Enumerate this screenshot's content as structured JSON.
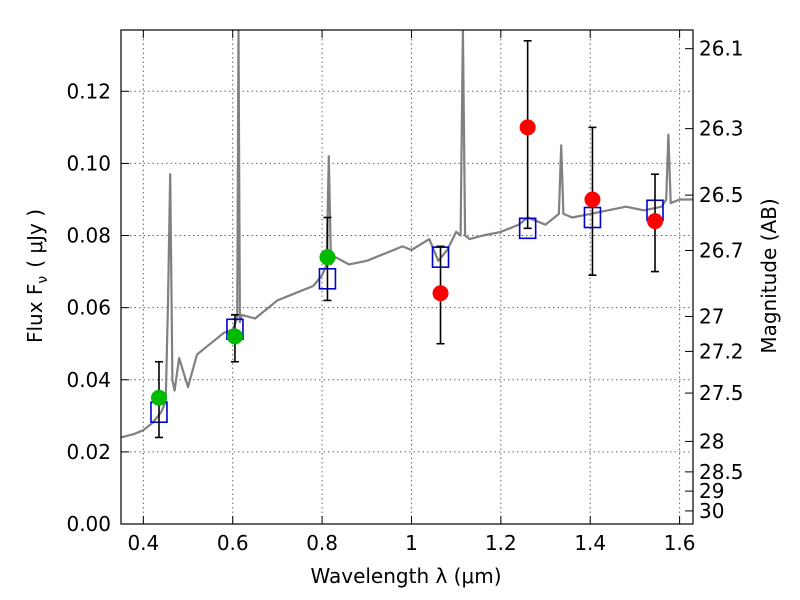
{
  "chart_data": {
    "type": "scatter",
    "xlabel": "Wavelength  λ (μm)",
    "ylabel_left": "Flux  F",
    "ylabel_left_sub": "ν",
    "ylabel_left_unit": "( μJy )",
    "ylabel_right": "Magnitude (AB)",
    "xlim": [
      0.35,
      1.63
    ],
    "ylim": [
      0.0,
      0.137
    ],
    "grid": true,
    "x_ticks": [
      0.4,
      0.6,
      0.8,
      1.0,
      1.2,
      1.4,
      1.6
    ],
    "x_tick_labels": [
      "0.4",
      "0.6",
      "0.8",
      "1",
      "1.2",
      "1.4",
      "1.6"
    ],
    "y_ticks": [
      0.0,
      0.02,
      0.04,
      0.06,
      0.08,
      0.1,
      0.12
    ],
    "y_tick_labels": [
      "0.00",
      "0.02",
      "0.04",
      "0.06",
      "0.08",
      "0.10",
      "0.12"
    ],
    "right_ticks": [
      {
        "label": "26.1",
        "mag": 26.1
      },
      {
        "label": "26.3",
        "mag": 26.3
      },
      {
        "label": "26.5",
        "mag": 26.5
      },
      {
        "label": "26.7",
        "mag": 26.7
      },
      {
        "label": "27",
        "mag": 27.0
      },
      {
        "label": "27.2",
        "mag": 27.2
      },
      {
        "label": "27.5",
        "mag": 27.5
      },
      {
        "label": "28",
        "mag": 28.0
      },
      {
        "label": "28.5",
        "mag": 28.5
      },
      {
        "label": "29",
        "mag": 29.0
      },
      {
        "label": "30",
        "mag": 30.0
      }
    ],
    "series": [
      {
        "kind": "line",
        "color": "#808080",
        "x": [
          0.35,
          0.38,
          0.4,
          0.42,
          0.44,
          0.45,
          0.455,
          0.46,
          0.465,
          0.47,
          0.48,
          0.5,
          0.52,
          0.55,
          0.58,
          0.6,
          0.61,
          0.613,
          0.616,
          0.62,
          0.65,
          0.68,
          0.7,
          0.74,
          0.78,
          0.8,
          0.81,
          0.815,
          0.82,
          0.83,
          0.86,
          0.9,
          0.94,
          0.98,
          1.0,
          1.04,
          1.06,
          1.08,
          1.1,
          1.11,
          1.115,
          1.12,
          1.13,
          1.16,
          1.2,
          1.24,
          1.26,
          1.3,
          1.33,
          1.335,
          1.34,
          1.36,
          1.4,
          1.44,
          1.48,
          1.52,
          1.56,
          1.57,
          1.575,
          1.58,
          1.6,
          1.63
        ],
        "y": [
          0.024,
          0.025,
          0.026,
          0.028,
          0.031,
          0.034,
          0.06,
          0.097,
          0.04,
          0.037,
          0.046,
          0.038,
          0.047,
          0.05,
          0.053,
          0.054,
          0.057,
          0.137,
          0.056,
          0.058,
          0.057,
          0.06,
          0.062,
          0.064,
          0.066,
          0.069,
          0.072,
          0.102,
          0.072,
          0.074,
          0.072,
          0.073,
          0.075,
          0.077,
          0.076,
          0.079,
          0.073,
          0.076,
          0.081,
          0.08,
          0.137,
          0.08,
          0.079,
          0.08,
          0.081,
          0.083,
          0.085,
          0.083,
          0.086,
          0.105,
          0.086,
          0.085,
          0.086,
          0.087,
          0.088,
          0.087,
          0.088,
          0.09,
          0.108,
          0.089,
          0.09,
          0.09
        ]
      },
      {
        "kind": "open-squares",
        "color": "#0000cc",
        "x": [
          0.435,
          0.605,
          0.812,
          1.065,
          1.26,
          1.405,
          1.545
        ],
        "y": [
          0.031,
          0.054,
          0.068,
          0.074,
          0.082,
          0.085,
          0.087
        ]
      },
      {
        "kind": "points-with-error",
        "color": "#00bb00",
        "x": [
          0.435,
          0.605,
          0.812
        ],
        "y": [
          0.035,
          0.052,
          0.074
        ],
        "yerr_low": [
          0.024,
          0.045,
          0.062
        ],
        "yerr_high": [
          0.045,
          0.058,
          0.085
        ]
      },
      {
        "kind": "points-with-error",
        "color": "#ff0000",
        "x": [
          1.065,
          1.26,
          1.405,
          1.545
        ],
        "y": [
          0.064,
          0.11,
          0.09,
          0.084
        ],
        "yerr_low": [
          0.05,
          0.082,
          0.069,
          0.07
        ],
        "yerr_high": [
          0.077,
          0.134,
          0.11,
          0.097
        ]
      }
    ]
  }
}
